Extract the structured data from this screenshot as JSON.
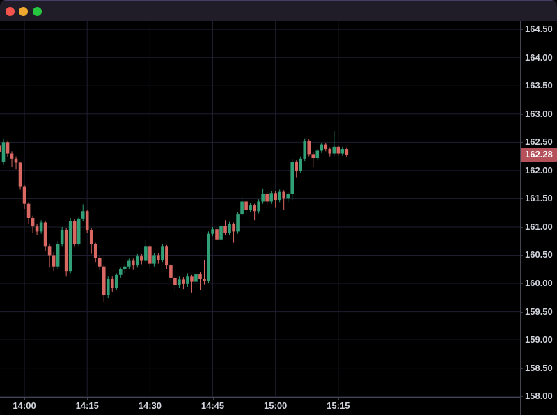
{
  "window": {
    "traffic_lights": {
      "close_color": "#f4544c",
      "minimize_color": "#f0a72f",
      "zoom_color": "#26c73e"
    }
  },
  "chart": {
    "colors": {
      "background": "#000000",
      "grid": "#1e1e30",
      "up": "#31a077",
      "down": "#d96862",
      "axis_text": "#d1d4dc",
      "axis_border": "#434651",
      "price_line": "#d4555e",
      "badge_bg": "#b4515a",
      "badge_text": "#ffffff",
      "titlebar_bg": "#201d29",
      "titlebar_border": "#463e69"
    },
    "price_line": {
      "label": "162.28",
      "value": 162.28
    },
    "y_axis": {
      "labels": [
        "164.50",
        "164.00",
        "163.50",
        "163.00",
        "162.50",
        "162.00",
        "161.50",
        "161.00",
        "160.50",
        "160.00",
        "159.50",
        "159.00",
        "158.50",
        "158.00"
      ]
    },
    "x_axis": {
      "labels": [
        "14:00",
        "14:15",
        "14:30",
        "14:45",
        "15:00",
        "15:15"
      ]
    }
  },
  "chart_data": {
    "type": "candlestick",
    "title": "",
    "xlabel": "",
    "ylabel": "",
    "interval_minutes": 1,
    "y_range": [
      157.99,
      164.65
    ],
    "y_tick_labels": [
      "164.50",
      "164.00",
      "163.50",
      "163.00",
      "162.50",
      "162.00",
      "161.50",
      "161.00",
      "160.50",
      "160.00",
      "159.50",
      "159.00",
      "158.50",
      "158.00"
    ],
    "x_tick_labels": [
      "14:00",
      "14:15",
      "14:30",
      "14:45",
      "15:00",
      "15:15"
    ],
    "last_price": 162.28,
    "candles": [
      [
        "13:54",
        162.45,
        162.56,
        162.28,
        162.33
      ],
      [
        "13:55",
        162.15,
        162.56,
        162.1,
        162.5
      ],
      [
        "13:56",
        162.5,
        162.53,
        162.24,
        162.3
      ],
      [
        "13:57",
        162.3,
        162.34,
        162.06,
        162.21
      ],
      [
        "13:58",
        162.21,
        162.25,
        162.02,
        162.14
      ],
      [
        "13:59",
        162.14,
        162.16,
        161.66,
        161.72
      ],
      [
        "14:00",
        161.72,
        161.75,
        161.32,
        161.41
      ],
      [
        "14:01",
        161.41,
        161.44,
        161.05,
        161.16
      ],
      [
        "14:02",
        161.16,
        161.2,
        160.9,
        161.01
      ],
      [
        "14:03",
        161.01,
        161.06,
        160.86,
        160.92
      ],
      [
        "14:04",
        160.92,
        161.12,
        160.88,
        161.08
      ],
      [
        "14:05",
        161.08,
        161.1,
        160.58,
        160.65
      ],
      [
        "14:06",
        160.65,
        160.7,
        160.28,
        160.5
      ],
      [
        "14:07",
        160.5,
        160.55,
        160.22,
        160.3
      ],
      [
        "14:08",
        160.3,
        160.75,
        160.26,
        160.7
      ],
      [
        "14:09",
        160.7,
        161.0,
        160.65,
        160.95
      ],
      [
        "14:10",
        160.95,
        160.98,
        160.12,
        160.22
      ],
      [
        "14:11",
        160.22,
        161.16,
        160.18,
        161.1
      ],
      [
        "14:12",
        161.1,
        161.14,
        160.65,
        160.7
      ],
      [
        "14:13",
        160.7,
        161.18,
        160.66,
        161.15
      ],
      [
        "14:14",
        161.15,
        161.4,
        161.1,
        161.28
      ],
      [
        "14:15",
        161.28,
        161.3,
        160.9,
        160.95
      ],
      [
        "14:16",
        160.95,
        160.98,
        160.52,
        160.7
      ],
      [
        "14:17",
        160.7,
        160.72,
        160.38,
        160.45
      ],
      [
        "14:18",
        160.45,
        160.48,
        160.24,
        160.3
      ],
      [
        "14:19",
        160.3,
        160.32,
        159.68,
        159.8
      ],
      [
        "14:20",
        159.8,
        160.12,
        159.74,
        160.08
      ],
      [
        "14:21",
        160.08,
        160.12,
        159.85,
        159.92
      ],
      [
        "14:22",
        159.92,
        160.18,
        159.88,
        160.15
      ],
      [
        "14:23",
        160.15,
        160.28,
        160.1,
        160.25
      ],
      [
        "14:24",
        160.25,
        160.34,
        160.18,
        160.3
      ],
      [
        "14:25",
        160.3,
        160.44,
        160.25,
        160.4
      ],
      [
        "14:26",
        160.4,
        160.44,
        160.24,
        160.32
      ],
      [
        "14:27",
        160.32,
        160.52,
        160.28,
        160.48
      ],
      [
        "14:28",
        160.48,
        160.52,
        160.34,
        160.4
      ],
      [
        "14:29",
        160.4,
        160.78,
        160.36,
        160.65
      ],
      [
        "14:30",
        160.65,
        160.68,
        160.28,
        160.35
      ],
      [
        "14:31",
        160.35,
        160.54,
        160.3,
        160.5
      ],
      [
        "14:32",
        160.5,
        160.53,
        160.35,
        160.42
      ],
      [
        "14:33",
        160.42,
        160.7,
        160.38,
        160.65
      ],
      [
        "14:34",
        160.65,
        160.68,
        160.26,
        160.32
      ],
      [
        "14:35",
        160.32,
        160.36,
        160.02,
        160.1
      ],
      [
        "14:36",
        160.1,
        160.14,
        159.85,
        159.97
      ],
      [
        "14:37",
        159.97,
        160.12,
        159.92,
        160.07
      ],
      [
        "14:38",
        160.07,
        160.11,
        159.9,
        159.99
      ],
      [
        "14:39",
        159.99,
        160.18,
        159.94,
        160.12
      ],
      [
        "14:40",
        160.12,
        160.15,
        159.83,
        160.03
      ],
      [
        "14:41",
        160.03,
        160.22,
        159.98,
        160.16
      ],
      [
        "14:42",
        160.16,
        160.2,
        159.88,
        160.08
      ],
      [
        "14:43",
        160.08,
        160.42,
        159.98,
        160.05
      ],
      [
        "14:44",
        160.05,
        160.92,
        160.0,
        160.88
      ],
      [
        "14:45",
        160.88,
        161.0,
        160.84,
        160.96
      ],
      [
        "14:46",
        160.96,
        160.99,
        160.72,
        160.78
      ],
      [
        "14:47",
        160.78,
        161.06,
        160.74,
        161.02
      ],
      [
        "14:48",
        161.02,
        161.12,
        160.85,
        160.9
      ],
      [
        "14:49",
        160.9,
        161.09,
        160.86,
        161.05
      ],
      [
        "14:50",
        161.05,
        161.08,
        160.72,
        160.92
      ],
      [
        "14:51",
        160.92,
        161.26,
        160.88,
        161.22
      ],
      [
        "14:52",
        161.22,
        161.55,
        161.18,
        161.45
      ],
      [
        "14:53",
        161.45,
        161.48,
        161.24,
        161.3
      ],
      [
        "14:54",
        161.3,
        161.42,
        161.26,
        161.38
      ],
      [
        "14:55",
        161.38,
        161.41,
        161.12,
        161.28
      ],
      [
        "14:56",
        161.28,
        161.49,
        161.24,
        161.45
      ],
      [
        "14:57",
        161.45,
        161.68,
        161.41,
        161.58
      ],
      [
        "14:58",
        161.58,
        161.61,
        161.38,
        161.45
      ],
      [
        "14:59",
        161.45,
        161.64,
        161.41,
        161.6
      ],
      [
        "15:00",
        161.6,
        161.63,
        161.35,
        161.48
      ],
      [
        "15:01",
        161.48,
        161.66,
        161.44,
        161.62
      ],
      [
        "15:02",
        161.62,
        161.65,
        161.3,
        161.5
      ],
      [
        "15:03",
        161.5,
        161.62,
        161.44,
        161.58
      ],
      [
        "15:04",
        161.58,
        162.2,
        161.48,
        162.15
      ],
      [
        "15:05",
        162.15,
        162.18,
        161.88,
        161.99
      ],
      [
        "15:06",
        161.99,
        162.25,
        161.95,
        162.21
      ],
      [
        "15:07",
        162.21,
        162.57,
        162.17,
        162.52
      ],
      [
        "15:08",
        162.52,
        162.55,
        162.25,
        162.29
      ],
      [
        "15:09",
        162.29,
        162.32,
        162.06,
        162.22
      ],
      [
        "15:10",
        162.22,
        162.38,
        162.18,
        162.35
      ],
      [
        "15:11",
        162.35,
        162.49,
        162.31,
        162.46
      ],
      [
        "15:12",
        162.46,
        162.49,
        162.34,
        162.38
      ],
      [
        "15:13",
        162.38,
        162.41,
        162.25,
        162.3
      ],
      [
        "15:14",
        162.3,
        162.7,
        162.26,
        162.42
      ],
      [
        "15:15",
        162.42,
        162.45,
        162.26,
        162.3
      ],
      [
        "15:16",
        162.3,
        162.42,
        162.26,
        162.38
      ],
      [
        "15:17",
        162.38,
        162.41,
        162.24,
        162.28
      ]
    ]
  }
}
